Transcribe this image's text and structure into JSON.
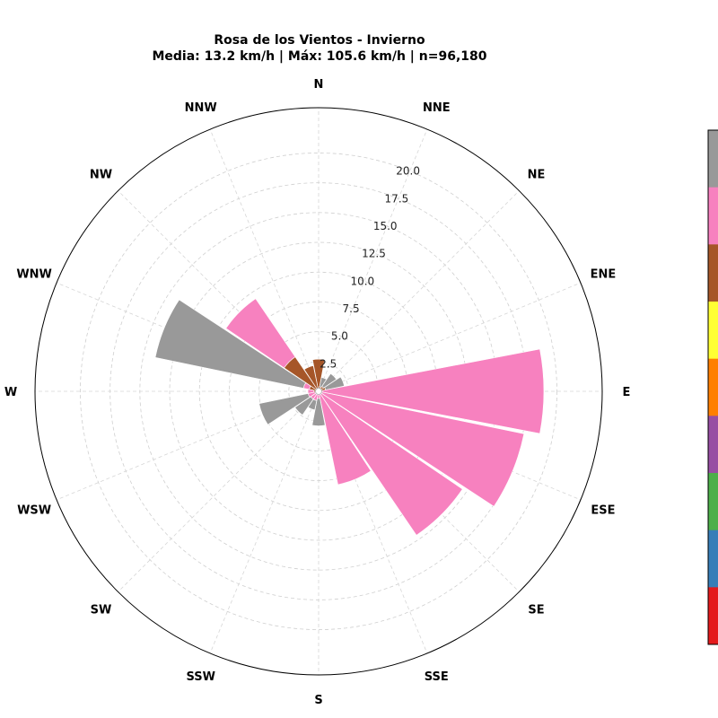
{
  "chart_data": {
    "type": "windrose",
    "title": "Rosa de los Vientos - Invierno",
    "subtitle": "Media: 13.2 km/h | Máx: 105.6 km/h | n=96,180",
    "directions": [
      "N",
      "NNE",
      "NE",
      "ENE",
      "E",
      "ESE",
      "SE",
      "SSE",
      "S",
      "SSW",
      "SW",
      "WSW",
      "W",
      "WNW",
      "NW",
      "NNW"
    ],
    "r_ticks": [
      "2.5",
      "5.0",
      "7.5",
      "10.0",
      "12.5",
      "15.0",
      "17.5",
      "20.0"
    ],
    "r_max": 23.8,
    "colorbar_colors": [
      "#999999",
      "#f781bf",
      "#a65628",
      "#ffff33",
      "#ff7f00",
      "#984ea3",
      "#4daf4a",
      "#377eb8",
      "#e41a1c"
    ],
    "series": [
      {
        "color": "#a65628",
        "values": [
          2.7,
          0.4,
          0.5,
          0.6,
          0.3,
          0.3,
          0.3,
          0.3,
          0.2,
          0.3,
          0.3,
          0.3,
          0.4,
          0.8,
          3.5,
          2.2
        ]
      },
      {
        "color": "#f781bf",
        "values": [
          0.0,
          0.0,
          0.0,
          0.0,
          18.6,
          17.3,
          14.3,
          7.7,
          0.4,
          0.5,
          0.5,
          0.6,
          0.5,
          0.5,
          5.9,
          0.0
        ]
      },
      {
        "color": "#999999",
        "values": [
          0.0,
          0.8,
          1.3,
          1.6,
          0.0,
          0.0,
          0.0,
          0.0,
          2.3,
          0.8,
          1.6,
          4.2,
          0.0,
          12.7,
          0.0,
          0.0
        ]
      }
    ]
  }
}
